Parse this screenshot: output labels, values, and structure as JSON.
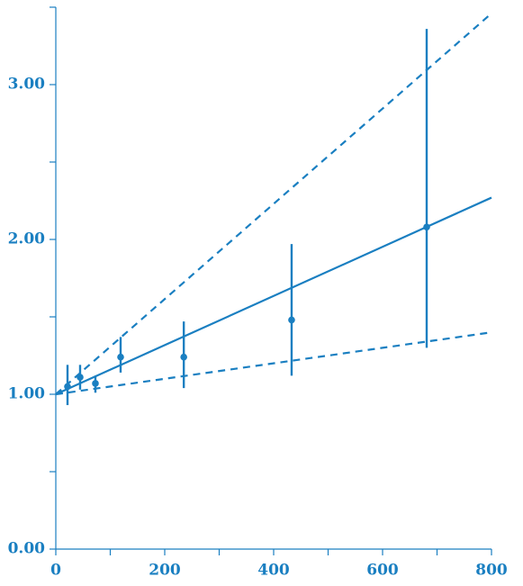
{
  "chart_data": {
    "type": "scatter",
    "color": "#1a7fc1",
    "xlim": [
      0,
      800
    ],
    "ylim": [
      0,
      3.5
    ],
    "xticks": [
      0,
      200,
      400,
      600,
      800
    ],
    "xminorticks": [
      100,
      300,
      500,
      700
    ],
    "yticks": [
      {
        "value": 0,
        "label": "0.00"
      },
      {
        "value": 1,
        "label": "1.00"
      },
      {
        "value": 2,
        "label": "2.00"
      },
      {
        "value": 3,
        "label": "3.00"
      }
    ],
    "yminorticks": [
      0.5,
      1.5,
      2.5,
      3.5
    ],
    "series": [
      {
        "x": [
          21.5,
          44.6,
          72.7,
          119,
          235,
          433,
          681
        ],
        "values": [
          1.05,
          1.11,
          1.07,
          1.24,
          1.24,
          1.48,
          2.08
        ],
        "error_plus": [
          0.14,
          0.08,
          0.05,
          0.13,
          0.23,
          0.49,
          1.28
        ],
        "error_minus": [
          0.12,
          0.08,
          0.06,
          0.1,
          0.2,
          0.36,
          0.78
        ]
      }
    ],
    "lines": [
      {
        "dashed": false,
        "x": [
          0,
          800
        ],
        "values": [
          1.0,
          2.27
        ]
      },
      {
        "dashed": true,
        "x": [
          0,
          800
        ],
        "values": [
          1.0,
          3.46
        ]
      },
      {
        "dashed": true,
        "x": [
          0,
          800
        ],
        "values": [
          1.0,
          1.4
        ]
      }
    ]
  }
}
